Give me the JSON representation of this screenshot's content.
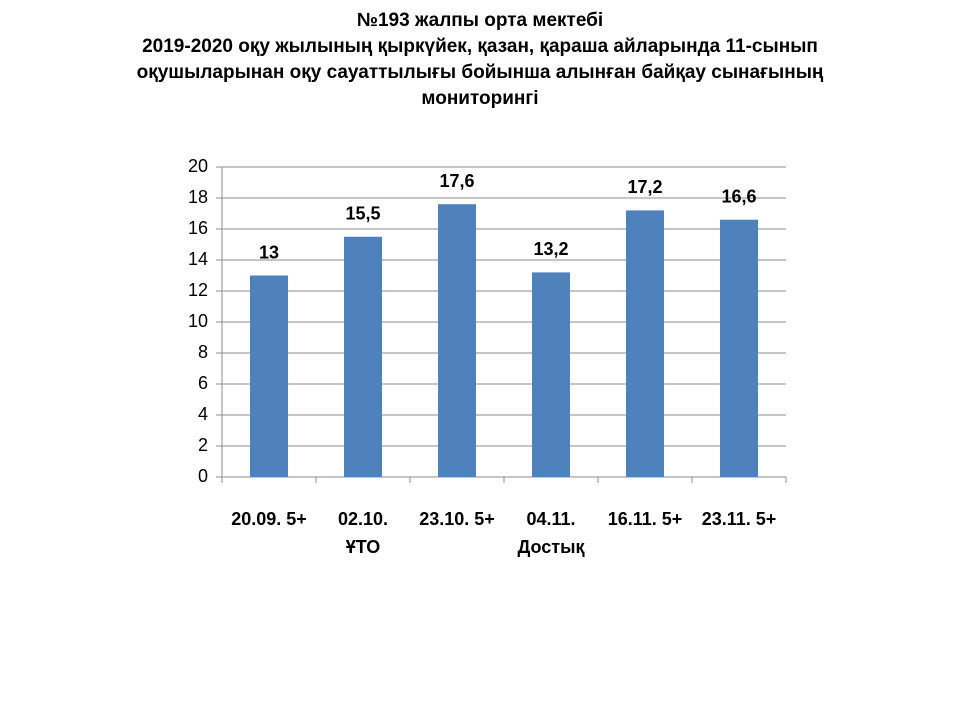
{
  "chart_data": {
    "type": "bar",
    "title": "№193  жалпы  орта  мектебі\n2019-2020  оқу жылының қыркүйек, қазан, қараша айларында  11-сынып\nоқушыларынан оқу сауаттылығы бойынша алынған байқау сынағының\nмониторингі",
    "categories": [
      "20.09. 5+",
      "02.10.\nҰТО",
      "23.10. 5+",
      "04.11.\nДостық",
      "16.11. 5+",
      "23.11. 5+"
    ],
    "values": [
      13,
      15.5,
      17.6,
      13.2,
      17.2,
      16.6
    ],
    "value_labels": [
      "13",
      "15,5",
      "17,6",
      "13,2",
      "17,2",
      "16,6"
    ],
    "color": "#4f81bd",
    "ylim": [
      0,
      20
    ],
    "yticks": [
      0,
      2,
      4,
      6,
      8,
      10,
      12,
      14,
      16,
      18,
      20
    ],
    "grid": true
  }
}
